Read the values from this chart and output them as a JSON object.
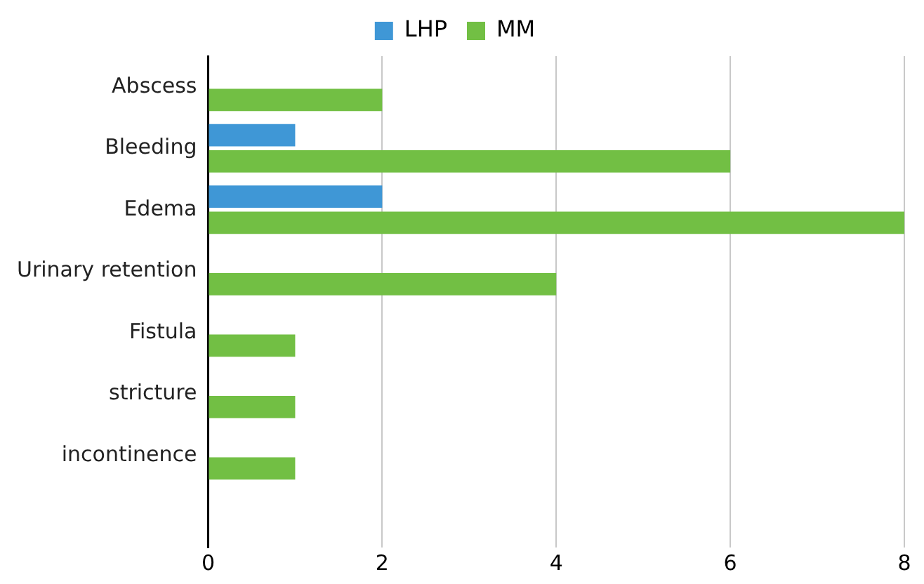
{
  "chart_data": {
    "type": "bar",
    "orientation": "horizontal",
    "categories": [
      "Abscess",
      "Bleeding",
      "Edema",
      "Urinary retention",
      "Fistula",
      "stricture",
      "incontinence",
      null
    ],
    "series": [
      {
        "name": "LHP",
        "color": "#3f97d6",
        "values": [
          0,
          1,
          2,
          0,
          0,
          0,
          0,
          null
        ]
      },
      {
        "name": "MM",
        "color": "#72bf44",
        "values": [
          2,
          6,
          8,
          4,
          1,
          1,
          1,
          null
        ]
      }
    ],
    "xlim": [
      0,
      8
    ],
    "xticks": [
      0,
      2,
      4,
      6,
      8
    ],
    "grid": "x",
    "legend": "top"
  }
}
